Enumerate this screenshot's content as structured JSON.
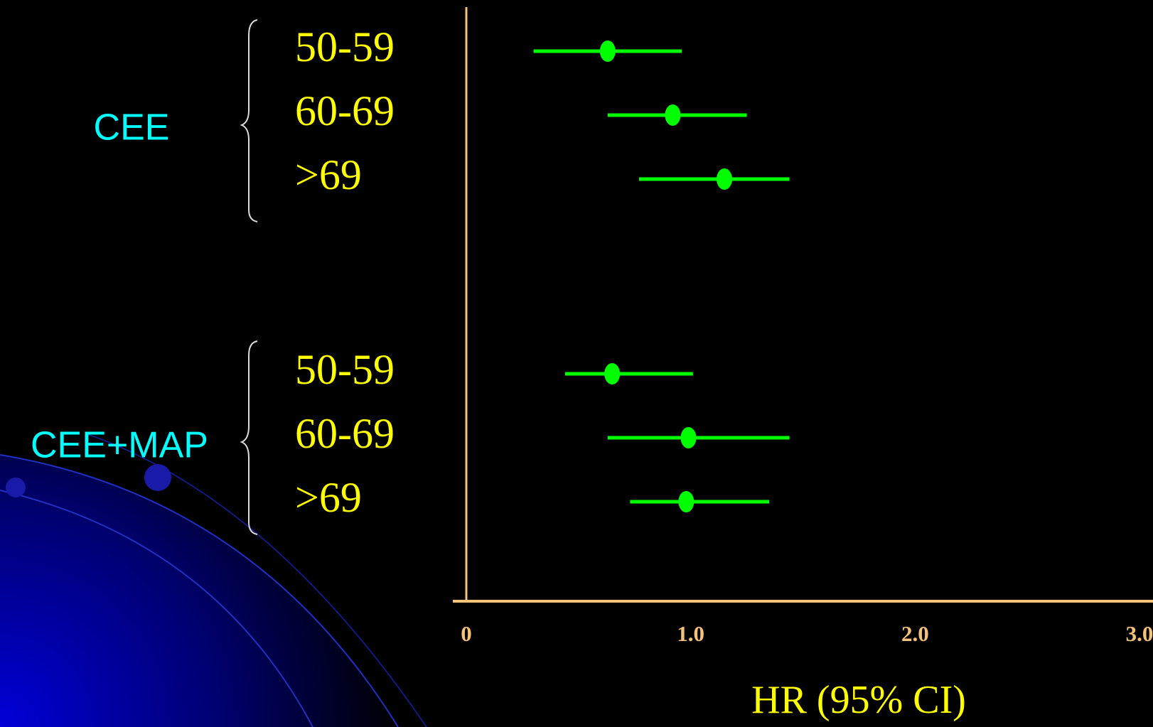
{
  "chart_data": {
    "type": "forest",
    "xlabel": "HR (95% CI)",
    "color": "#00ff00",
    "xlim": [
      0,
      3
    ],
    "xticks": [
      0,
      {
        "value": 1,
        "label": "1.0"
      },
      {
        "value": 2,
        "label": "2.0"
      },
      {
        "value": 3,
        "label": "3.0"
      }
    ],
    "series": [
      {
        "name": "CEE",
        "categories": [
          "50-59",
          "60-69",
          ">69"
        ],
        "values": [
          0.63,
          0.92,
          1.15
        ],
        "lower": [
          0.3,
          0.63,
          0.77
        ],
        "upper": [
          0.96,
          1.25,
          1.44
        ]
      },
      {
        "name": "CEE+MAP",
        "categories": [
          "50-59",
          "60-69",
          ">69"
        ],
        "values": [
          0.65,
          0.99,
          0.98
        ],
        "lower": [
          0.44,
          0.63,
          0.73
        ],
        "upper": [
          1.01,
          1.44,
          1.35
        ]
      }
    ]
  }
}
